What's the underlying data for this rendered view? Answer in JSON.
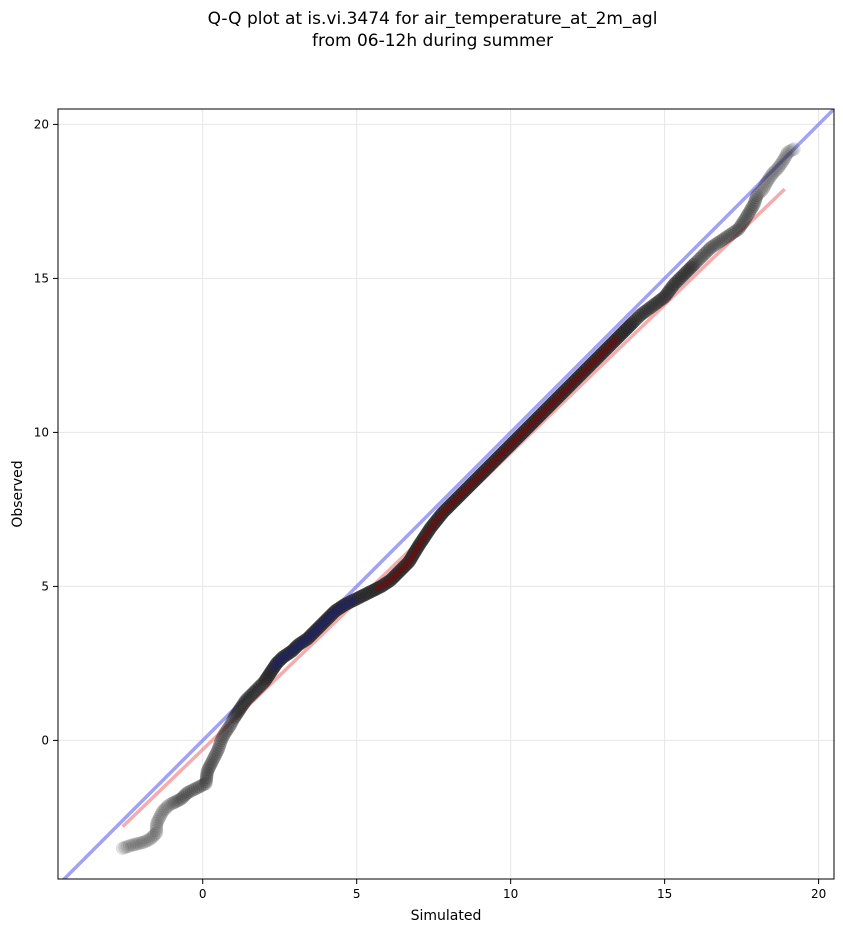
{
  "chart_data": {
    "type": "scatter",
    "title": [
      "Q-Q plot at is.vi.3474 for air_temperature_at_2m_agl",
      "from 06-12h during summer"
    ],
    "xlabel": "Simulated",
    "ylabel": "Observed",
    "xlim": [
      -4.7,
      20.5
    ],
    "ylim": [
      -4.5,
      20.5
    ],
    "xticks": [
      0,
      5,
      10,
      15,
      20
    ],
    "yticks": [
      0,
      5,
      10,
      15,
      20
    ],
    "grid": true,
    "legend": "none",
    "colors": {
      "points": "#2b2b2b",
      "identity_line": "#7b7bf0",
      "fit_line": "#f08080",
      "low_density_overlay": "#1a237e",
      "high_density_overlay": "#8b0000"
    },
    "identity_line": {
      "x": [
        -4.7,
        20.5
      ],
      "y": [
        -4.7,
        20.5
      ]
    },
    "fit_line": {
      "x": [
        -2.6,
        18.9
      ],
      "y": [
        -2.8,
        17.9
      ]
    },
    "quantiles": [
      [
        -2.6,
        -3.5
      ],
      [
        -2.3,
        -3.4
      ],
      [
        -1.9,
        -3.3
      ],
      [
        -1.7,
        -3.2
      ],
      [
        -1.5,
        -3.0
      ],
      [
        -1.5,
        -2.7
      ],
      [
        -1.3,
        -2.3
      ],
      [
        -1.1,
        -2.1
      ],
      [
        -0.9,
        -2.0
      ],
      [
        -0.7,
        -1.9
      ],
      [
        -0.5,
        -1.7
      ],
      [
        -0.3,
        -1.6
      ],
      [
        -0.1,
        -1.5
      ],
      [
        0.1,
        -1.4
      ],
      [
        0.15,
        -1.0
      ],
      [
        0.3,
        -0.7
      ],
      [
        0.5,
        -0.3
      ],
      [
        0.6,
        0.0
      ],
      [
        0.7,
        0.2
      ],
      [
        0.9,
        0.5
      ],
      [
        1.0,
        0.7
      ],
      [
        1.2,
        1.0
      ],
      [
        1.4,
        1.3
      ],
      [
        1.6,
        1.5
      ],
      [
        1.8,
        1.7
      ],
      [
        2.0,
        1.9
      ],
      [
        2.2,
        2.2
      ],
      [
        2.4,
        2.5
      ],
      [
        2.6,
        2.7
      ],
      [
        2.9,
        2.9
      ],
      [
        3.1,
        3.1
      ],
      [
        3.4,
        3.3
      ],
      [
        3.7,
        3.6
      ],
      [
        4.0,
        3.9
      ],
      [
        4.3,
        4.2
      ],
      [
        4.6,
        4.4
      ],
      [
        5.0,
        4.6
      ],
      [
        5.4,
        4.8
      ],
      [
        5.8,
        5.0
      ],
      [
        6.1,
        5.2
      ],
      [
        6.4,
        5.5
      ],
      [
        6.7,
        5.8
      ],
      [
        7.0,
        6.3
      ],
      [
        7.4,
        6.9
      ],
      [
        7.8,
        7.4
      ],
      [
        8.2,
        7.8
      ],
      [
        8.6,
        8.2
      ],
      [
        9.0,
        8.6
      ],
      [
        9.4,
        9.0
      ],
      [
        9.8,
        9.4
      ],
      [
        10.2,
        9.8
      ],
      [
        10.6,
        10.2
      ],
      [
        11.0,
        10.6
      ],
      [
        11.4,
        11.0
      ],
      [
        11.8,
        11.4
      ],
      [
        12.2,
        11.8
      ],
      [
        12.6,
        12.2
      ],
      [
        13.0,
        12.6
      ],
      [
        13.4,
        13.0
      ],
      [
        13.8,
        13.4
      ],
      [
        14.2,
        13.8
      ],
      [
        14.6,
        14.1
      ],
      [
        15.0,
        14.4
      ],
      [
        15.3,
        14.8
      ],
      [
        15.6,
        15.1
      ],
      [
        15.9,
        15.4
      ],
      [
        16.2,
        15.7
      ],
      [
        16.5,
        16.0
      ],
      [
        16.8,
        16.2
      ],
      [
        17.1,
        16.4
      ],
      [
        17.4,
        16.6
      ],
      [
        17.6,
        16.9
      ],
      [
        17.9,
        17.4
      ],
      [
        18.0,
        17.7
      ],
      [
        18.2,
        17.9
      ],
      [
        18.3,
        18.1
      ],
      [
        18.5,
        18.4
      ],
      [
        18.7,
        18.6
      ],
      [
        18.9,
        18.9
      ],
      [
        19.0,
        19.1
      ],
      [
        19.2,
        19.2
      ]
    ]
  }
}
